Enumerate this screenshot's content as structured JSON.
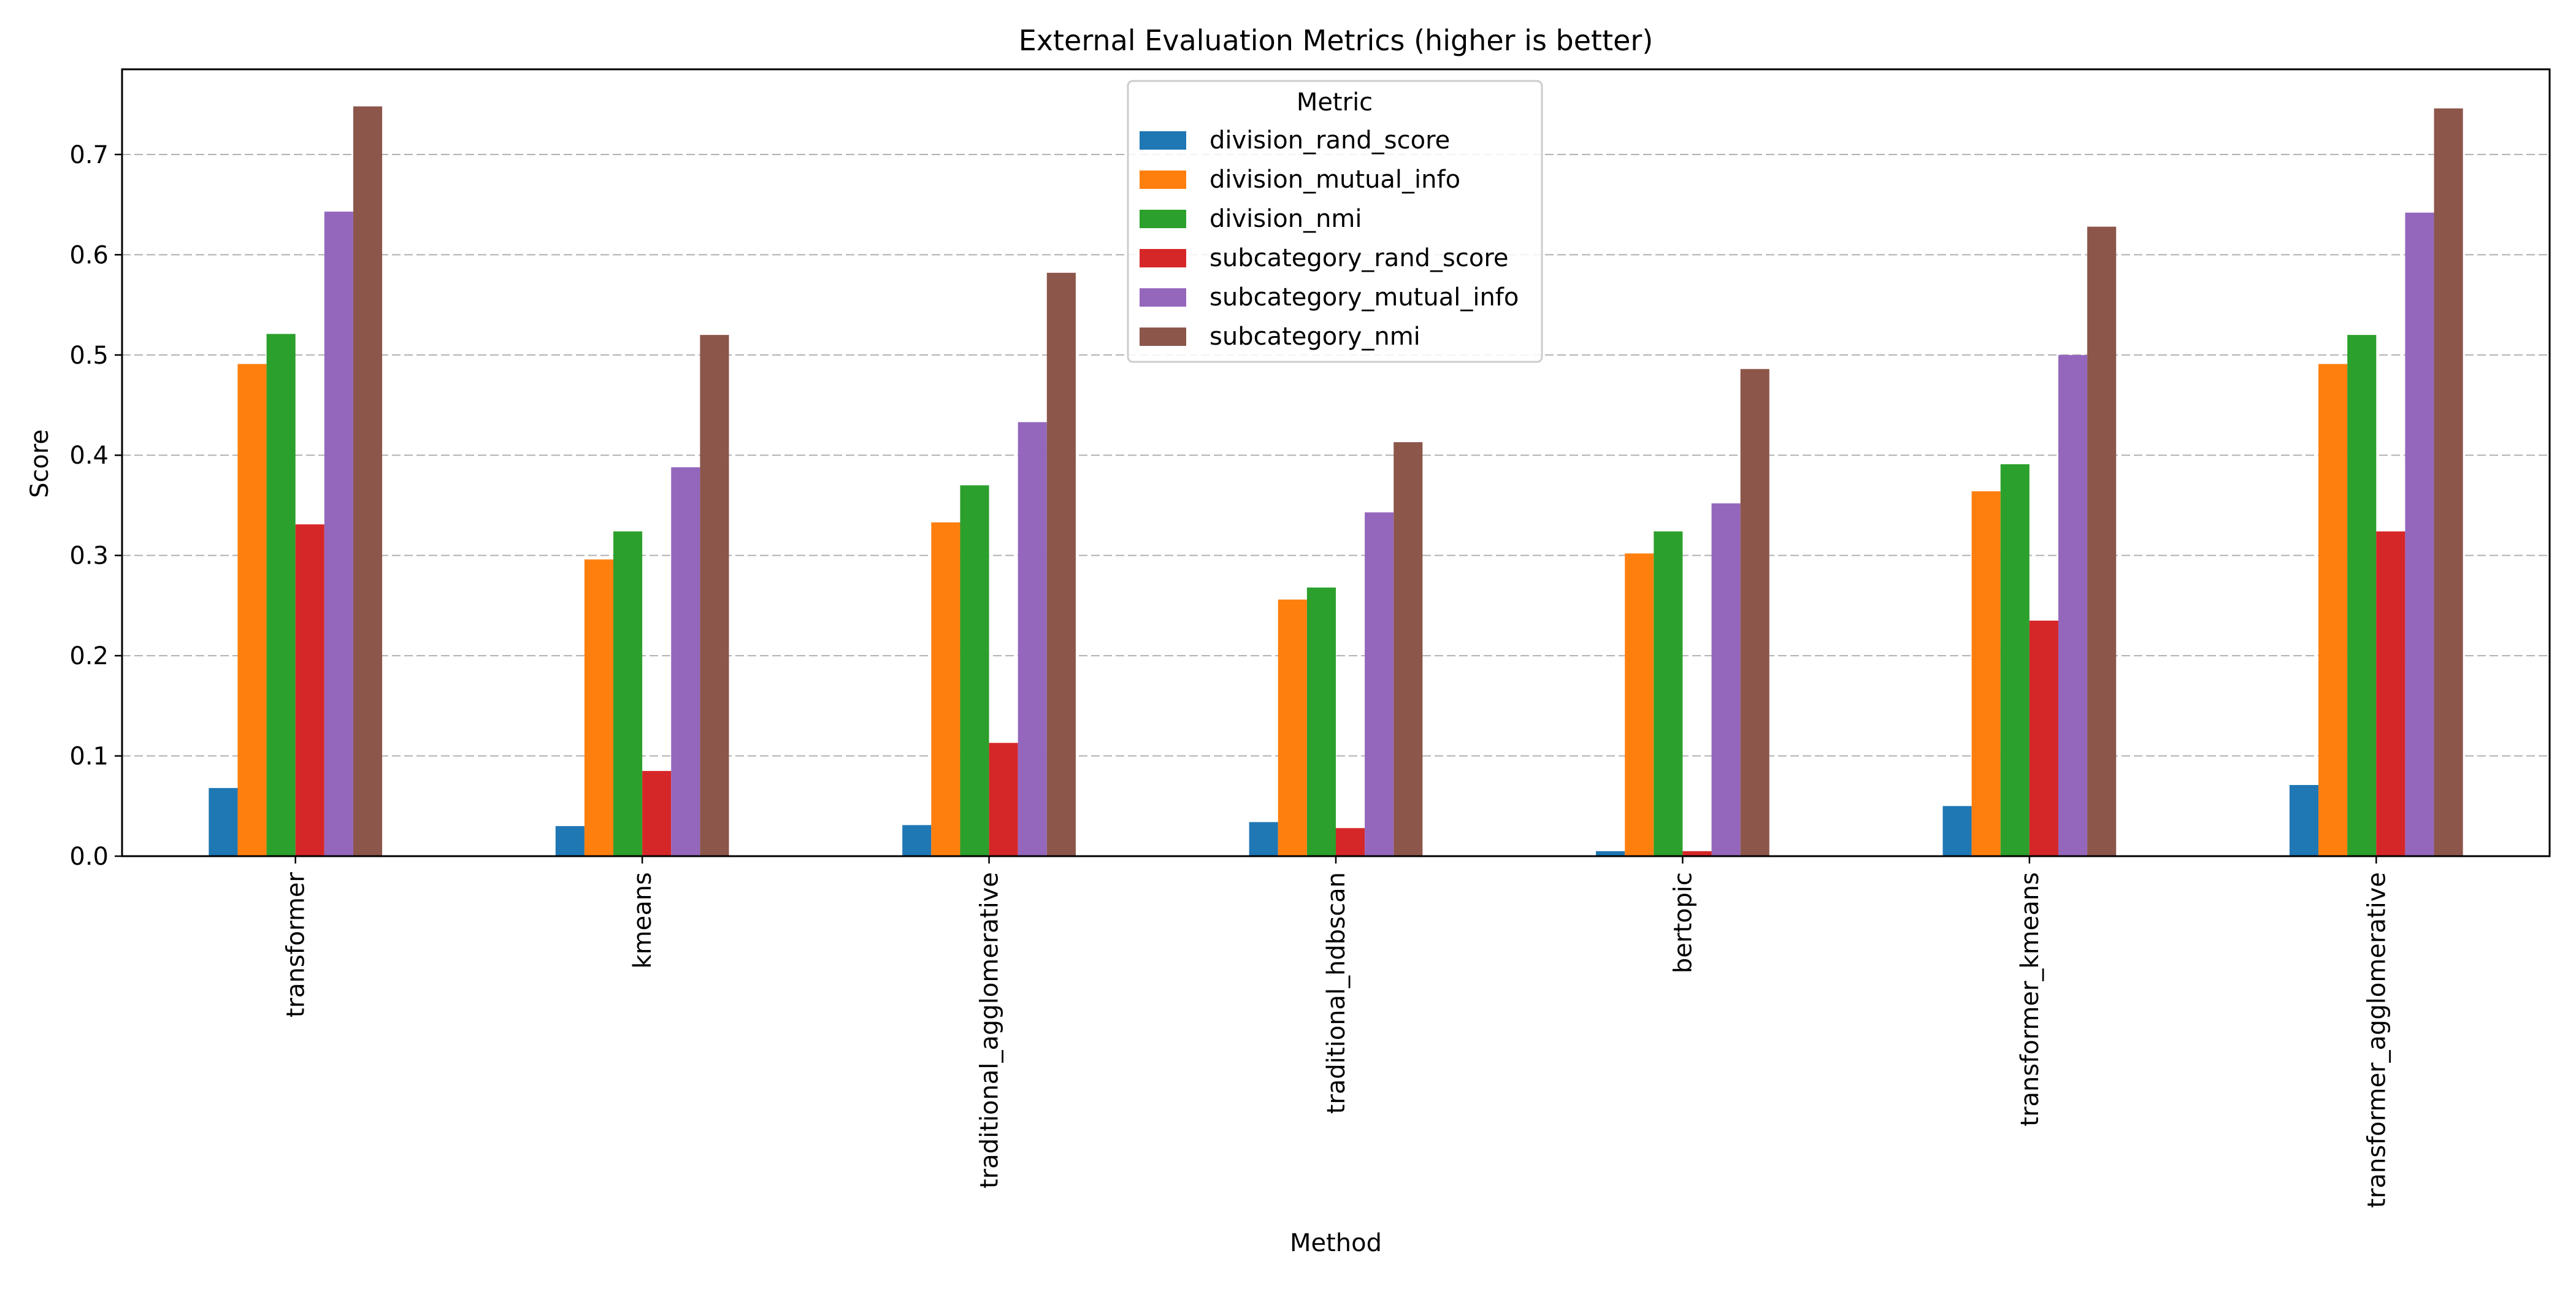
{
  "chart_data": {
    "type": "bar",
    "title": "External Evaluation Metrics (higher is better)",
    "xlabel": "Method",
    "ylabel": "Score",
    "ylim": [
      0,
      0.785
    ],
    "yticks": [
      "0.0",
      "0.1",
      "0.2",
      "0.3",
      "0.4",
      "0.5",
      "0.6",
      "0.7"
    ],
    "grid": "y-dashed",
    "legend": {
      "title": "Metric",
      "placement": "top-center"
    },
    "categories": [
      "transformer",
      "kmeans",
      "traditional_agglomerative",
      "traditional_hdbscan",
      "bertopic",
      "transformer_kmeans",
      "transformer_agglomerative"
    ],
    "series": [
      {
        "name": "division_rand_score",
        "color": "#1f77b4",
        "values": [
          0.068,
          0.03,
          0.031,
          0.034,
          0.005,
          0.05,
          0.071
        ]
      },
      {
        "name": "division_mutual_info",
        "color": "#ff7f0e",
        "values": [
          0.491,
          0.296,
          0.333,
          0.256,
          0.302,
          0.364,
          0.491
        ]
      },
      {
        "name": "division_nmi",
        "color": "#2ca02c",
        "values": [
          0.521,
          0.324,
          0.37,
          0.268,
          0.324,
          0.391,
          0.52
        ]
      },
      {
        "name": "subcategory_rand_score",
        "color": "#d62728",
        "values": [
          0.331,
          0.085,
          0.113,
          0.028,
          0.005,
          0.235,
          0.324
        ]
      },
      {
        "name": "subcategory_mutual_info",
        "color": "#9467bd",
        "values": [
          0.643,
          0.388,
          0.433,
          0.343,
          0.352,
          0.5,
          0.642
        ]
      },
      {
        "name": "subcategory_nmi",
        "color": "#8c564b",
        "values": [
          0.748,
          0.52,
          0.582,
          0.413,
          0.486,
          0.628,
          0.746
        ]
      }
    ]
  }
}
